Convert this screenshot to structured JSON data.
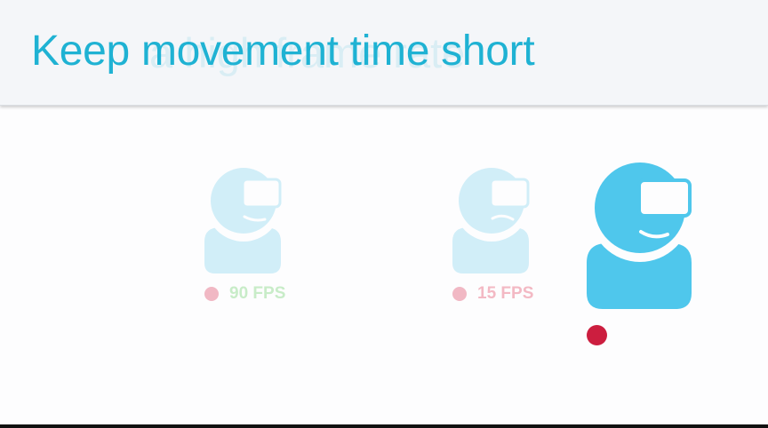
{
  "slide": {
    "title": "Keep movement time short",
    "ghost_title": "a high frame rate"
  },
  "avatars": [
    {
      "icon": "vr-headset-user-icon",
      "state": "faded",
      "label": "90 FPS"
    },
    {
      "icon": "vr-headset-user-icon",
      "state": "faded",
      "label": "15 FPS"
    },
    {
      "icon": "vr-headset-user-icon",
      "state": "active"
    }
  ],
  "colors": {
    "accent": "#1fb2d3",
    "avatar_active": "#4fc7ec",
    "avatar_faded": "#d1eef8",
    "fps_good": "#c8ecc8",
    "fps_bad": "#f3b9c4",
    "marker": "#cc1e3f"
  }
}
